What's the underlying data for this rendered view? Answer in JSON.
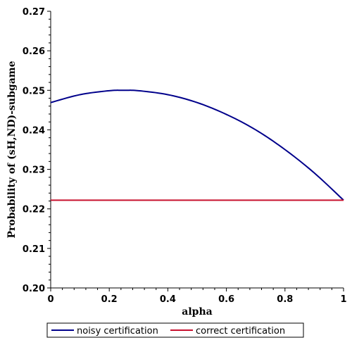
{
  "chart_data": {
    "type": "line",
    "title": "",
    "xlabel": "alpha",
    "ylabel": "Probability of (sH,ND)-subgame",
    "xlim": [
      0,
      1
    ],
    "ylim": [
      0.2,
      0.27
    ],
    "x_ticks": [
      0,
      0.2,
      0.4,
      0.6,
      0.8,
      1
    ],
    "x_tick_labels": [
      "0",
      "0.2",
      "0.4",
      "0.6",
      "0.8",
      "1"
    ],
    "y_ticks": [
      0.2,
      0.21,
      0.22,
      0.23,
      0.24,
      0.25,
      0.26,
      0.27
    ],
    "y_tick_labels": [
      "0.20",
      "0.21",
      "0.22",
      "0.23",
      "0.24",
      "0.25",
      "0.26",
      "0.27"
    ],
    "grid": false,
    "legend_position": "bottom",
    "series": [
      {
        "name": "noisy certification",
        "color": "#00008b",
        "x": [
          0,
          0.1,
          0.2,
          0.25,
          0.3,
          0.4,
          0.5,
          0.6,
          0.7,
          0.8,
          0.9,
          1.0
        ],
        "y": [
          0.2469,
          0.2489,
          0.2499,
          0.25,
          0.2499,
          0.2489,
          0.2469,
          0.2439,
          0.24,
          0.235,
          0.2291,
          0.2222
        ]
      },
      {
        "name": "correct certification",
        "color": "#c8102e",
        "x": [
          0,
          1
        ],
        "y": [
          0.2222,
          0.2222
        ]
      }
    ]
  }
}
